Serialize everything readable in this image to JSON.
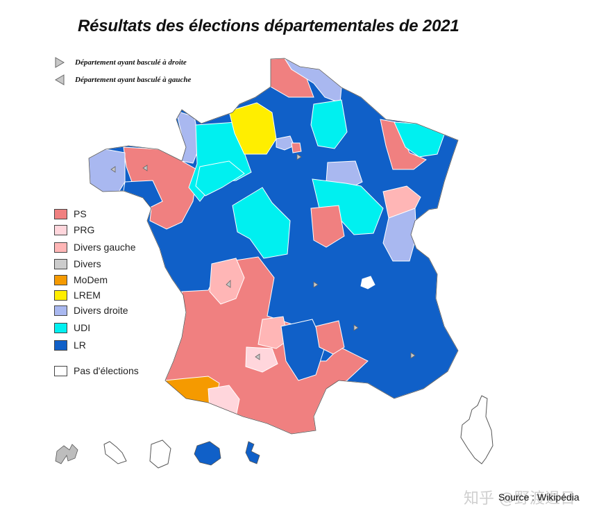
{
  "title": "Résultats des élections départementales de 2021",
  "arrow_legend": {
    "right": "Département ayant basculé à droite",
    "left": "Département ayant basculé à gauche"
  },
  "legend": [
    {
      "label": "PS",
      "color": "#f08080"
    },
    {
      "label": "PRG",
      "color": "#ffd6dc"
    },
    {
      "label": "Divers gauche",
      "color": "#ffb6b6"
    },
    {
      "label": "Divers",
      "color": "#cccccc"
    },
    {
      "label": "MoDem",
      "color": "#f59a00"
    },
    {
      "label": "LREM",
      "color": "#ffee00"
    },
    {
      "label": "Divers droite",
      "color": "#a9b8f0"
    },
    {
      "label": "UDI",
      "color": "#00f0f0"
    },
    {
      "label": "LR",
      "color": "#1060c8"
    },
    {
      "label": "Pas d'élections",
      "color": "#ffffff"
    }
  ],
  "source": "Source : Wikipédia",
  "watermark": "知乎 @野渡退日"
}
